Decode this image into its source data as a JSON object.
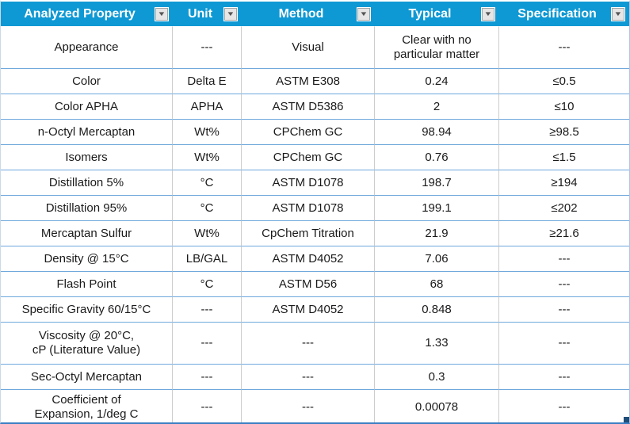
{
  "table": {
    "columns": [
      {
        "label": "Analyzed Property"
      },
      {
        "label": "Unit"
      },
      {
        "label": "Method"
      },
      {
        "label": "Typical"
      },
      {
        "label": "Specification"
      }
    ],
    "rows": [
      {
        "tall": true,
        "cells": [
          "Appearance",
          "---",
          "Visual",
          "Clear with no\nparticular matter",
          "---"
        ]
      },
      {
        "tall": false,
        "cells": [
          "Color",
          "Delta E",
          "ASTM E308",
          "0.24",
          "≤0.5"
        ]
      },
      {
        "tall": false,
        "cells": [
          "Color APHA",
          "APHA",
          "ASTM D5386",
          "2",
          "≤10"
        ]
      },
      {
        "tall": false,
        "cells": [
          "n-Octyl Mercaptan",
          "Wt%",
          "CPChem GC",
          "98.94",
          "≥98.5"
        ]
      },
      {
        "tall": false,
        "cells": [
          "Isomers",
          "Wt%",
          "CPChem GC",
          "0.76",
          "≤1.5"
        ]
      },
      {
        "tall": false,
        "cells": [
          "Distillation 5%",
          "°C",
          "ASTM D1078",
          "198.7",
          "≥194"
        ]
      },
      {
        "tall": false,
        "cells": [
          "Distillation 95%",
          "°C",
          "ASTM D1078",
          "199.1",
          "≤202"
        ]
      },
      {
        "tall": false,
        "cells": [
          "Mercaptan Sulfur",
          "Wt%",
          "CpChem Titration",
          "21.9",
          "≥21.6"
        ]
      },
      {
        "tall": false,
        "cells": [
          "Density @ 15°C",
          "LB/GAL",
          "ASTM D4052",
          "7.06",
          "---"
        ]
      },
      {
        "tall": false,
        "cells": [
          "Flash Point",
          "°C",
          "ASTM D56",
          "68",
          "---"
        ]
      },
      {
        "tall": false,
        "cells": [
          "Specific Gravity 60/15°C",
          "---",
          "ASTM D4052",
          "0.848",
          "---"
        ]
      },
      {
        "tall": true,
        "cells": [
          "Viscosity @ 20°C,\ncP (Literature Value)",
          "---",
          "---",
          "1.33",
          "---"
        ]
      },
      {
        "tall": false,
        "cells": [
          "Sec-Octyl Mercaptan",
          "---",
          "---",
          "0.3",
          "---"
        ]
      },
      {
        "tall": "sm",
        "cells": [
          "Coefficient of\nExpansion, 1/deg C",
          "---",
          "---",
          "0.00078",
          "---"
        ]
      }
    ]
  },
  "icons": {
    "filter_dropdown_icon": "▼"
  },
  "colors": {
    "header_background": "#0e99d4",
    "header_text": "#ffffff",
    "row_separator": "#6fa8dc",
    "column_separator": "#cccccc",
    "bottom_border": "#3a7ec2",
    "resize_handle": "#1f4e79",
    "filter_button_background": "#e6e6e6",
    "body_text": "#1a1a1a"
  }
}
